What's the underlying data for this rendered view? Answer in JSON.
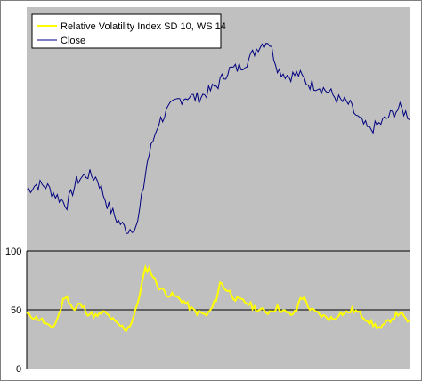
{
  "chart_data": [
    {
      "type": "line",
      "panel": "upper",
      "legend": [
        {
          "name": "Relative Volatility Index SD 10, WS 14",
          "color": "#ffff00"
        },
        {
          "name": "Close",
          "color": "#000080"
        }
      ],
      "background": "#c0c0c0",
      "grid": false,
      "series": [
        {
          "name": "Close",
          "color": "#000080",
          "values": [
            0.77,
            0.76,
            0.78,
            0.8,
            0.79,
            0.78,
            0.8,
            0.83,
            0.87,
            0.86,
            0.87,
            0.85,
            0.76,
            0.7,
            0.64,
            0.58,
            0.55,
            0.52,
            0.48,
            0.42,
            0.38,
            0.34,
            0.27,
            0.16,
            0.13,
            0.09,
            0.05,
            0.03,
            0.02,
            0.01,
            0.0
          ]
        }
      ]
    },
    {
      "type": "line",
      "panel": "lower",
      "background": "#c0c0c0",
      "ylim": [
        0,
        100
      ],
      "yticks": [
        "100",
        "50",
        "0"
      ],
      "reference_lines": [
        50
      ],
      "grid": false,
      "series": [
        {
          "name": "Relative Volatility Index SD 10, WS 14",
          "color": "#ffff00",
          "values": [
            46,
            45,
            43,
            42,
            38,
            34,
            38,
            48,
            62,
            58,
            49,
            55,
            52,
            47,
            46,
            44,
            48,
            46,
            42,
            38,
            36,
            33,
            38,
            48,
            65,
            84,
            85,
            76,
            69,
            66,
            63,
            62,
            60,
            58,
            54,
            50,
            48,
            47,
            45,
            50,
            58,
            74,
            68,
            65,
            60,
            58,
            57,
            55,
            52,
            50,
            49,
            48,
            50,
            52,
            50,
            47,
            46,
            48,
            62,
            58,
            50,
            48,
            46,
            44,
            43,
            42,
            47,
            47,
            48,
            50,
            48,
            45,
            42,
            38,
            36,
            34,
            38,
            42,
            45,
            48,
            42,
            40
          ]
        }
      ]
    }
  ]
}
